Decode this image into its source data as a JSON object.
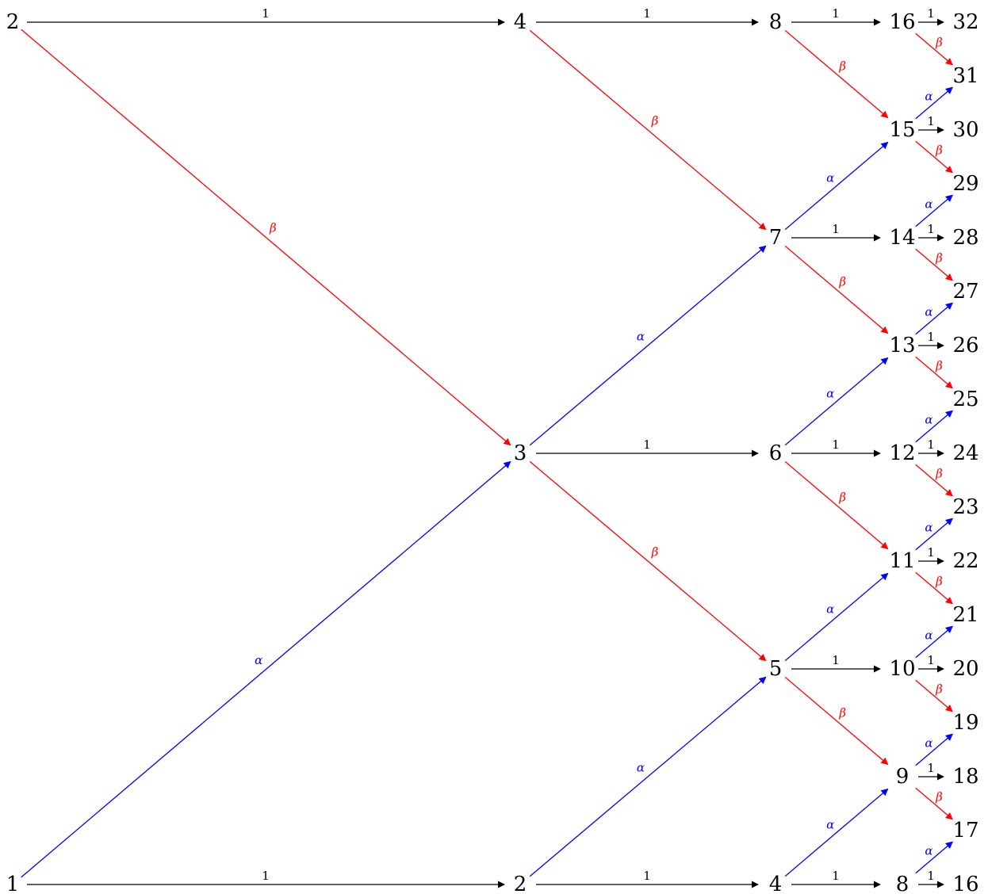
{
  "colors": {
    "one": "#000000",
    "alpha": "#0000ff",
    "beta": "#ff0000"
  },
  "edge_labels": {
    "one": "1",
    "alpha": "α",
    "beta": "β"
  },
  "nodes": [
    {
      "id": "c0_top",
      "label": "2"
    },
    {
      "id": "c0_bot",
      "label": "1"
    },
    {
      "id": "c1_top",
      "label": "4"
    },
    {
      "id": "c1_mid",
      "label": "3"
    },
    {
      "id": "c1_bot",
      "label": "2"
    },
    {
      "id": "c2_8",
      "label": "8"
    },
    {
      "id": "c2_7",
      "label": "7"
    },
    {
      "id": "c2_6",
      "label": "6"
    },
    {
      "id": "c2_5",
      "label": "5"
    },
    {
      "id": "c2_4",
      "label": "4"
    },
    {
      "id": "c3_16",
      "label": "16"
    },
    {
      "id": "c3_15",
      "label": "15"
    },
    {
      "id": "c3_14",
      "label": "14"
    },
    {
      "id": "c3_13",
      "label": "13"
    },
    {
      "id": "c3_12",
      "label": "12"
    },
    {
      "id": "c3_11",
      "label": "11"
    },
    {
      "id": "c3_10",
      "label": "10"
    },
    {
      "id": "c3_9",
      "label": "9"
    },
    {
      "id": "c3_8",
      "label": "8"
    },
    {
      "id": "c4_32",
      "label": "32"
    },
    {
      "id": "c4_31",
      "label": "31"
    },
    {
      "id": "c4_30",
      "label": "30"
    },
    {
      "id": "c4_29",
      "label": "29"
    },
    {
      "id": "c4_28",
      "label": "28"
    },
    {
      "id": "c4_27",
      "label": "27"
    },
    {
      "id": "c4_26",
      "label": "26"
    },
    {
      "id": "c4_25",
      "label": "25"
    },
    {
      "id": "c4_24",
      "label": "24"
    },
    {
      "id": "c4_23",
      "label": "23"
    },
    {
      "id": "c4_22",
      "label": "22"
    },
    {
      "id": "c4_21",
      "label": "21"
    },
    {
      "id": "c4_20",
      "label": "20"
    },
    {
      "id": "c4_19",
      "label": "19"
    },
    {
      "id": "c4_18",
      "label": "18"
    },
    {
      "id": "c4_17",
      "label": "17"
    },
    {
      "id": "c4_16",
      "label": "16"
    }
  ],
  "edges": [
    {
      "from": "c0_top",
      "to": "c1_top",
      "type": "one"
    },
    {
      "from": "c0_top",
      "to": "c1_mid",
      "type": "beta"
    },
    {
      "from": "c0_bot",
      "to": "c1_mid",
      "type": "alpha"
    },
    {
      "from": "c0_bot",
      "to": "c1_bot",
      "type": "one"
    },
    {
      "from": "c1_top",
      "to": "c2_8",
      "type": "one"
    },
    {
      "from": "c1_top",
      "to": "c2_7",
      "type": "beta"
    },
    {
      "from": "c1_mid",
      "to": "c2_7",
      "type": "alpha"
    },
    {
      "from": "c1_mid",
      "to": "c2_6",
      "type": "one"
    },
    {
      "from": "c1_mid",
      "to": "c2_5",
      "type": "beta"
    },
    {
      "from": "c1_bot",
      "to": "c2_5",
      "type": "alpha"
    },
    {
      "from": "c1_bot",
      "to": "c2_4",
      "type": "one"
    },
    {
      "from": "c2_8",
      "to": "c3_16",
      "type": "one"
    },
    {
      "from": "c2_8",
      "to": "c3_15",
      "type": "beta"
    },
    {
      "from": "c2_7",
      "to": "c3_15",
      "type": "alpha"
    },
    {
      "from": "c2_7",
      "to": "c3_14",
      "type": "one"
    },
    {
      "from": "c2_7",
      "to": "c3_13",
      "type": "beta"
    },
    {
      "from": "c2_6",
      "to": "c3_13",
      "type": "alpha"
    },
    {
      "from": "c2_6",
      "to": "c3_12",
      "type": "one"
    },
    {
      "from": "c2_6",
      "to": "c3_11",
      "type": "beta"
    },
    {
      "from": "c2_5",
      "to": "c3_11",
      "type": "alpha"
    },
    {
      "from": "c2_5",
      "to": "c3_10",
      "type": "one"
    },
    {
      "from": "c2_5",
      "to": "c3_9",
      "type": "beta"
    },
    {
      "from": "c2_4",
      "to": "c3_9",
      "type": "alpha"
    },
    {
      "from": "c2_4",
      "to": "c3_8",
      "type": "one"
    },
    {
      "from": "c3_16",
      "to": "c4_32",
      "type": "one"
    },
    {
      "from": "c3_16",
      "to": "c4_31",
      "type": "beta"
    },
    {
      "from": "c3_15",
      "to": "c4_31",
      "type": "alpha"
    },
    {
      "from": "c3_15",
      "to": "c4_30",
      "type": "one"
    },
    {
      "from": "c3_15",
      "to": "c4_29",
      "type": "beta"
    },
    {
      "from": "c3_14",
      "to": "c4_29",
      "type": "alpha"
    },
    {
      "from": "c3_14",
      "to": "c4_28",
      "type": "one"
    },
    {
      "from": "c3_14",
      "to": "c4_27",
      "type": "beta"
    },
    {
      "from": "c3_13",
      "to": "c4_27",
      "type": "alpha"
    },
    {
      "from": "c3_13",
      "to": "c4_26",
      "type": "one"
    },
    {
      "from": "c3_13",
      "to": "c4_25",
      "type": "beta"
    },
    {
      "from": "c3_12",
      "to": "c4_25",
      "type": "alpha"
    },
    {
      "from": "c3_12",
      "to": "c4_24",
      "type": "one"
    },
    {
      "from": "c3_12",
      "to": "c4_23",
      "type": "beta"
    },
    {
      "from": "c3_11",
      "to": "c4_23",
      "type": "alpha"
    },
    {
      "from": "c3_11",
      "to": "c4_22",
      "type": "one"
    },
    {
      "from": "c3_11",
      "to": "c4_21",
      "type": "beta"
    },
    {
      "from": "c3_10",
      "to": "c4_21",
      "type": "alpha"
    },
    {
      "from": "c3_10",
      "to": "c4_20",
      "type": "one"
    },
    {
      "from": "c3_10",
      "to": "c4_19",
      "type": "beta"
    },
    {
      "from": "c3_9",
      "to": "c4_19",
      "type": "alpha"
    },
    {
      "from": "c3_9",
      "to": "c4_18",
      "type": "one"
    },
    {
      "from": "c3_9",
      "to": "c4_17",
      "type": "beta"
    },
    {
      "from": "c3_8",
      "to": "c4_17",
      "type": "alpha"
    },
    {
      "from": "c3_8",
      "to": "c4_16",
      "type": "one"
    }
  ]
}
